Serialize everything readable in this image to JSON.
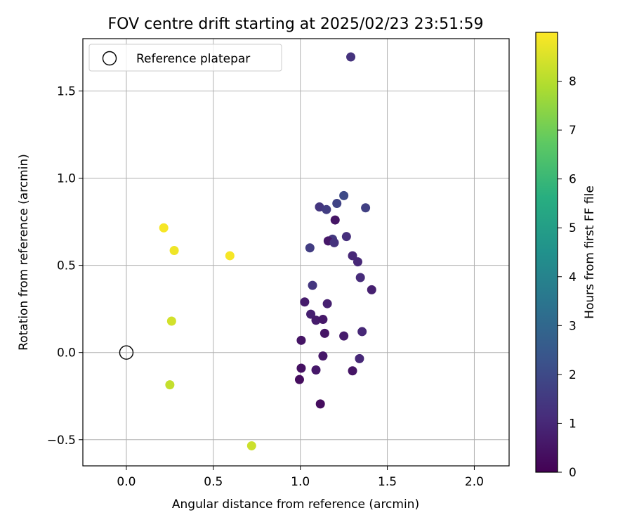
{
  "chart_data": {
    "type": "scatter",
    "title": "FOV centre drift starting at 2025/02/23 23:51:59",
    "xlabel": "Angular distance from reference (arcmin)",
    "ylabel": "Rotation from reference (arcmin)",
    "xlim": [
      -0.25,
      2.2
    ],
    "ylim": [
      -0.65,
      1.8
    ],
    "x_ticks": [
      0.0,
      0.5,
      1.0,
      1.5,
      2.0
    ],
    "x_tick_labels": [
      "0.0",
      "0.5",
      "1.0",
      "1.5",
      "2.0"
    ],
    "y_ticks": [
      -0.5,
      0.0,
      0.5,
      1.0,
      1.5
    ],
    "y_tick_labels": [
      "−0.5",
      "0.0",
      "0.5",
      "1.0",
      "1.5"
    ],
    "grid": true,
    "legend": {
      "placement": "top-left",
      "entries": [
        "Reference platepar"
      ]
    },
    "reference_point": {
      "x": 0.0,
      "y": 0.0,
      "name": "Reference platepar"
    },
    "colorbar": {
      "label": "Hours from first FF file",
      "range": [
        0,
        9
      ],
      "ticks": [
        0,
        1,
        2,
        3,
        4,
        5,
        6,
        7,
        8
      ],
      "tick_labels": [
        "0",
        "1",
        "2",
        "3",
        "4",
        "5",
        "6",
        "7",
        "8"
      ],
      "colormap": "viridis"
    },
    "points": [
      {
        "x": 1.29,
        "y": 1.695,
        "h": 1.3
      },
      {
        "x": 1.25,
        "y": 0.9,
        "h": 2.0
      },
      {
        "x": 1.21,
        "y": 0.855,
        "h": 1.8
      },
      {
        "x": 1.11,
        "y": 0.835,
        "h": 1.4
      },
      {
        "x": 1.15,
        "y": 0.82,
        "h": 1.6
      },
      {
        "x": 1.375,
        "y": 0.83,
        "h": 1.7
      },
      {
        "x": 1.2,
        "y": 0.76,
        "h": 0.5
      },
      {
        "x": 1.265,
        "y": 0.665,
        "h": 1.2
      },
      {
        "x": 1.185,
        "y": 0.65,
        "h": 1.5
      },
      {
        "x": 1.16,
        "y": 0.64,
        "h": 0.6
      },
      {
        "x": 1.195,
        "y": 0.63,
        "h": 1.3
      },
      {
        "x": 1.055,
        "y": 0.6,
        "h": 1.6
      },
      {
        "x": 1.3,
        "y": 0.555,
        "h": 1.0
      },
      {
        "x": 1.33,
        "y": 0.52,
        "h": 1.0
      },
      {
        "x": 1.345,
        "y": 0.43,
        "h": 1.1
      },
      {
        "x": 1.41,
        "y": 0.36,
        "h": 0.8
      },
      {
        "x": 1.07,
        "y": 0.385,
        "h": 1.4
      },
      {
        "x": 1.025,
        "y": 0.29,
        "h": 0.7
      },
      {
        "x": 1.155,
        "y": 0.28,
        "h": 0.8
      },
      {
        "x": 1.06,
        "y": 0.22,
        "h": 0.8
      },
      {
        "x": 1.09,
        "y": 0.185,
        "h": 0.7
      },
      {
        "x": 1.13,
        "y": 0.19,
        "h": 0.6
      },
      {
        "x": 1.355,
        "y": 0.12,
        "h": 1.0
      },
      {
        "x": 1.14,
        "y": 0.11,
        "h": 0.5
      },
      {
        "x": 1.25,
        "y": 0.095,
        "h": 0.7
      },
      {
        "x": 1.005,
        "y": 0.07,
        "h": 0.5
      },
      {
        "x": 1.13,
        "y": -0.02,
        "h": 0.6
      },
      {
        "x": 1.34,
        "y": -0.035,
        "h": 1.0
      },
      {
        "x": 1.005,
        "y": -0.09,
        "h": 0.4
      },
      {
        "x": 1.09,
        "y": -0.1,
        "h": 0.6
      },
      {
        "x": 1.3,
        "y": -0.105,
        "h": 0.5
      },
      {
        "x": 0.995,
        "y": -0.155,
        "h": 0.3
      },
      {
        "x": 1.115,
        "y": -0.295,
        "h": 0.3
      },
      {
        "x": 0.215,
        "y": 0.715,
        "h": 8.9
      },
      {
        "x": 0.275,
        "y": 0.585,
        "h": 8.8
      },
      {
        "x": 0.595,
        "y": 0.555,
        "h": 8.9
      },
      {
        "x": 0.26,
        "y": 0.18,
        "h": 8.4
      },
      {
        "x": 0.25,
        "y": -0.185,
        "h": 8.2
      },
      {
        "x": 0.72,
        "y": -0.535,
        "h": 8.3
      }
    ]
  }
}
